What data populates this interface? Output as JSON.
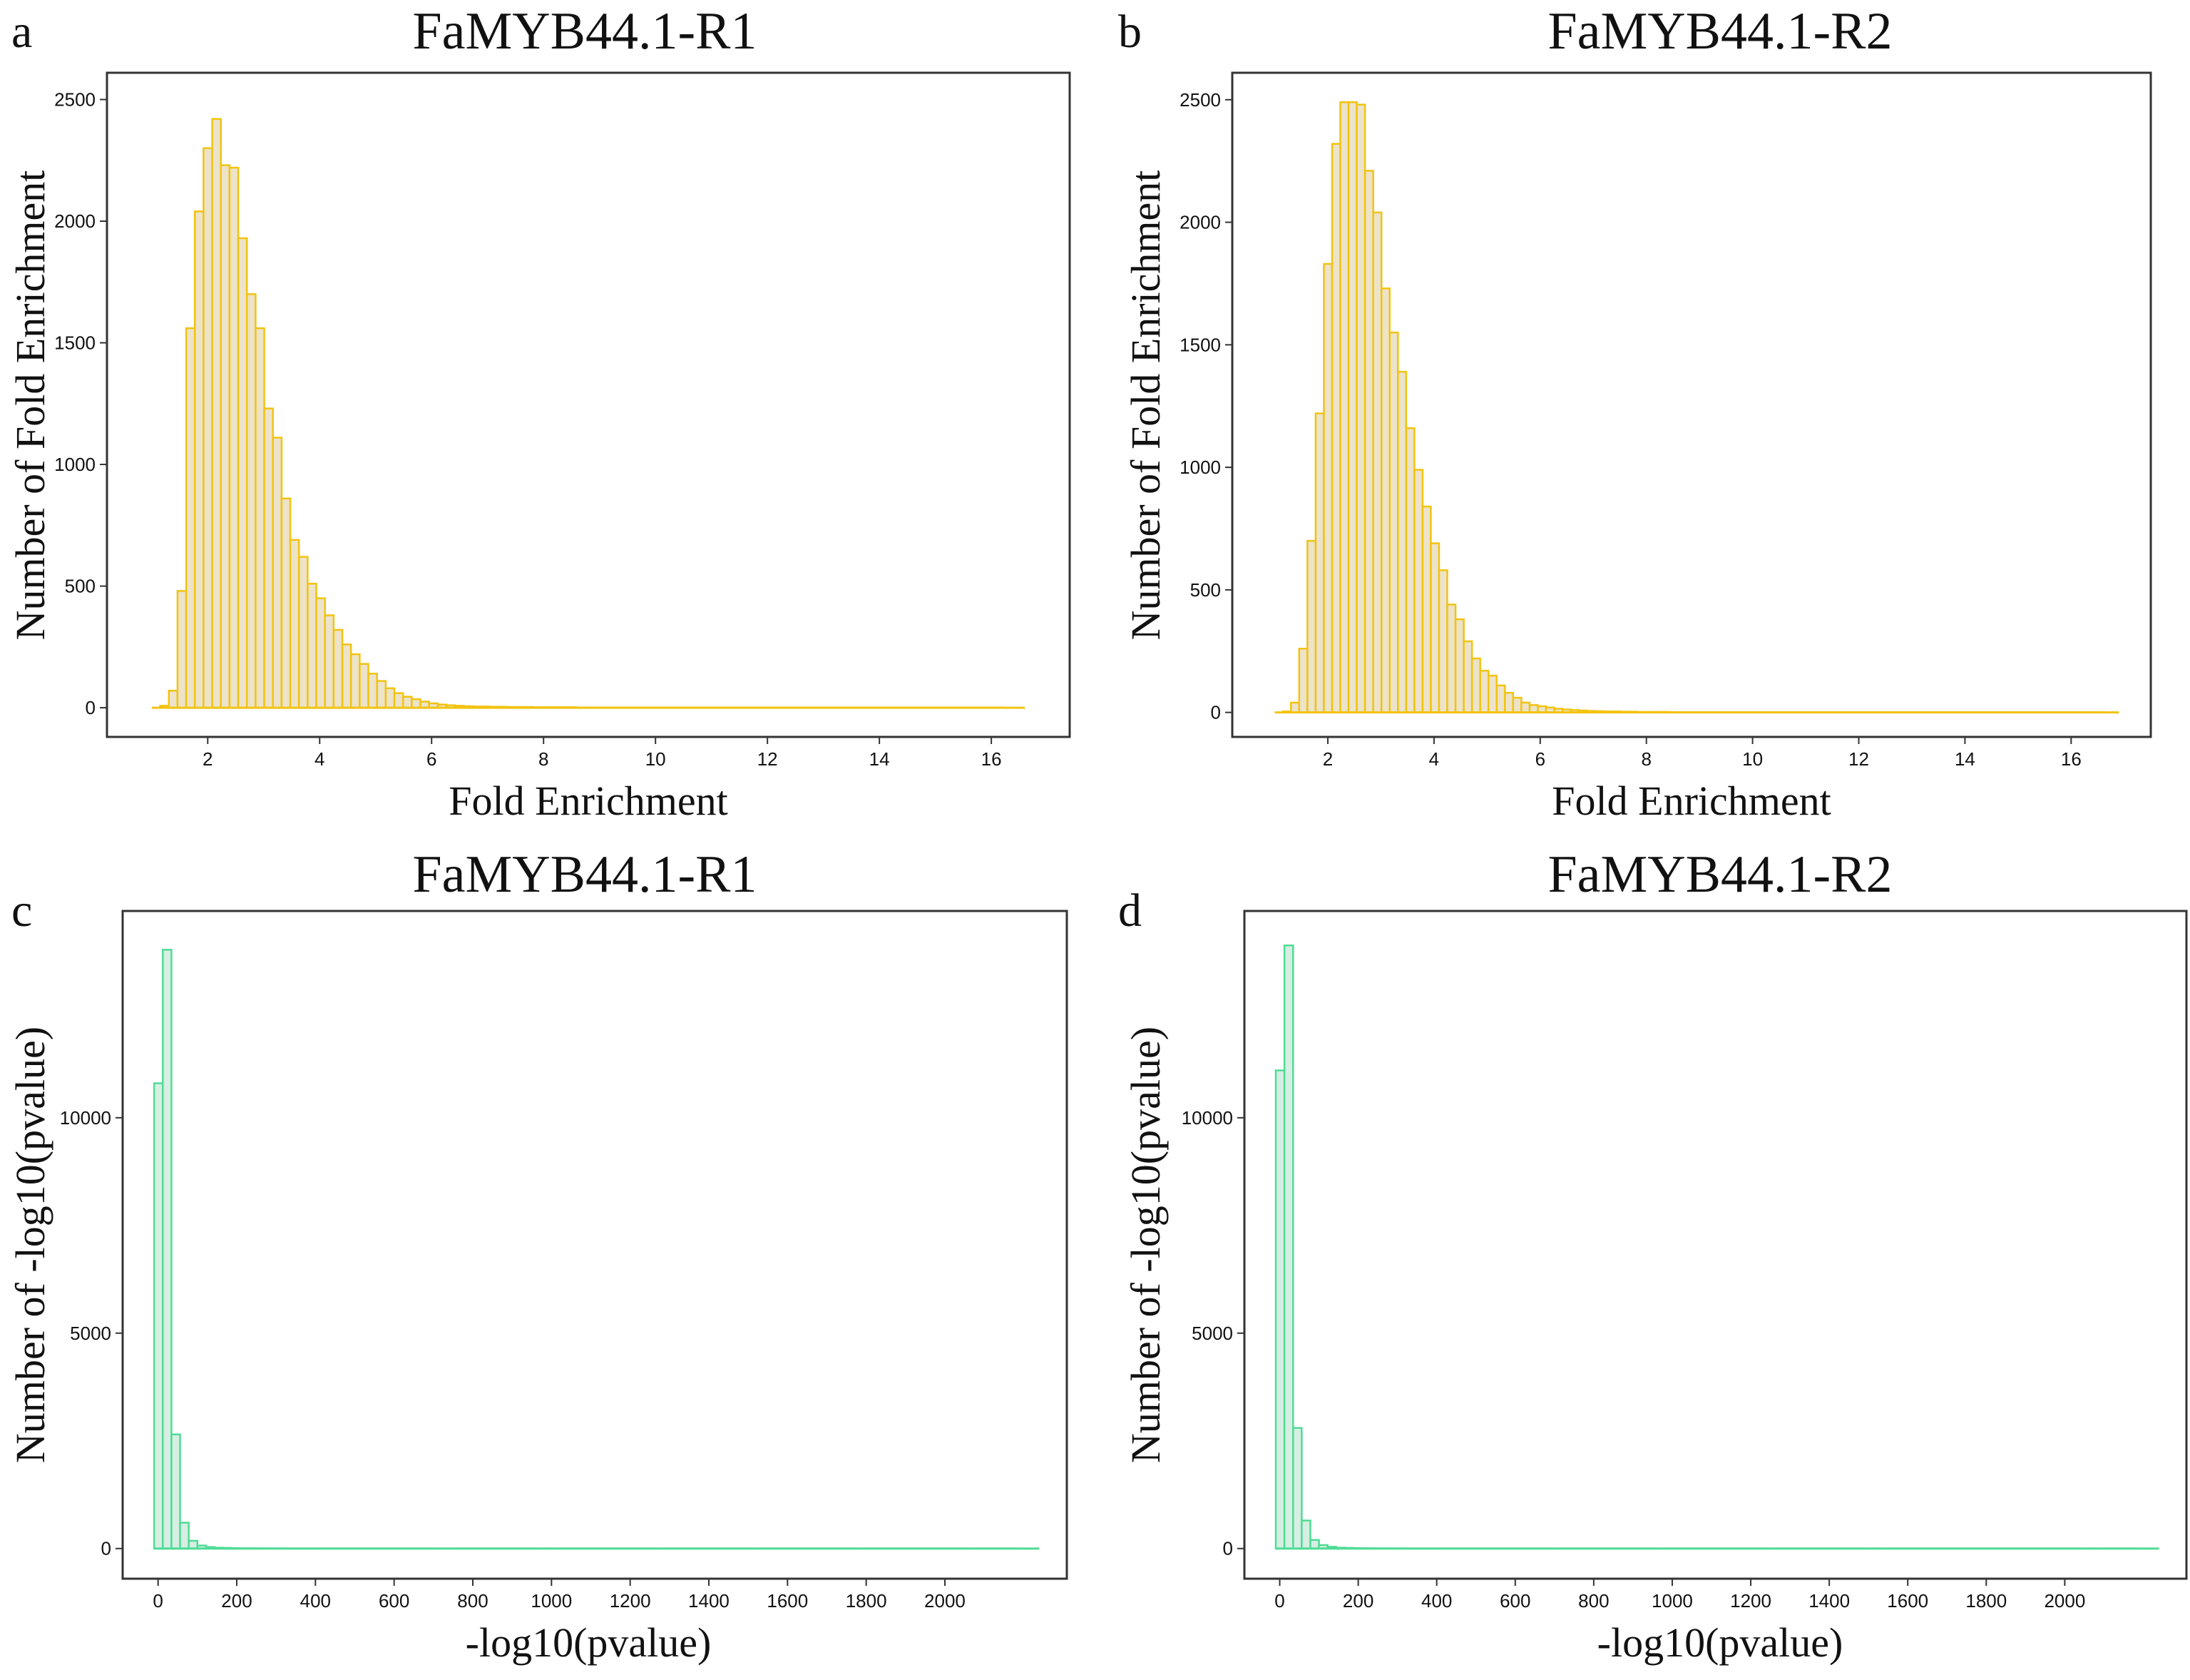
{
  "chart_data": [
    {
      "panel": "a",
      "type": "bar",
      "title": "FaMYB44.1-R1",
      "xlabel": "Fold Enrichment",
      "ylabel": "Number of Fold Enrichment",
      "xlim": [
        0.2,
        17.4
      ],
      "ylim": [
        -120,
        2610
      ],
      "xticks": [
        2,
        4,
        6,
        8,
        10,
        12,
        14,
        16
      ],
      "yticks": [
        0,
        500,
        1000,
        1500,
        2000,
        2500
      ],
      "bin_start": 1.15,
      "bin_width": 0.155,
      "values": [
        8,
        70,
        480,
        1560,
        2040,
        2300,
        2420,
        2230,
        2220,
        1930,
        1700,
        1560,
        1230,
        1110,
        860,
        690,
        620,
        510,
        450,
        380,
        320,
        260,
        220,
        180,
        140,
        110,
        80,
        60,
        45,
        35,
        25,
        18,
        13,
        10,
        8,
        6,
        5,
        5,
        4,
        4,
        3,
        3,
        3,
        2,
        2,
        2,
        2,
        2,
        1,
        1,
        1,
        1,
        1,
        1,
        1,
        1,
        1,
        1,
        1,
        1,
        1,
        1,
        1,
        1,
        1,
        1,
        1,
        1,
        1,
        1,
        1,
        1,
        1,
        1,
        1,
        1,
        1,
        1,
        1,
        1,
        1,
        1,
        1,
        1,
        1,
        1,
        1,
        1,
        1,
        1,
        1,
        1,
        1,
        1,
        1,
        1,
        1
      ],
      "baseline_range": [
        1.0,
        16.6
      ],
      "color": "#f2c311",
      "fill": "#ece3c9"
    },
    {
      "panel": "b",
      "type": "bar",
      "title": "FaMYB44.1-R2",
      "xlabel": "Fold Enrichment",
      "ylabel": "Number of Fold Enrichment",
      "xlim": [
        0.2,
        17.5
      ],
      "ylim": [
        -100,
        2610
      ],
      "xticks": [
        2,
        4,
        6,
        8,
        10,
        12,
        14,
        16
      ],
      "yticks": [
        0,
        500,
        1000,
        1500,
        2000,
        2500
      ],
      "bin_start": 1.15,
      "bin_width": 0.155,
      "values": [
        4,
        40,
        260,
        700,
        1220,
        1830,
        2320,
        2490,
        2490,
        2480,
        2210,
        2040,
        1730,
        1550,
        1390,
        1160,
        990,
        840,
        690,
        580,
        440,
        380,
        290,
        220,
        170,
        150,
        110,
        80,
        60,
        40,
        30,
        25,
        20,
        15,
        12,
        10,
        8,
        6,
        5,
        4,
        4,
        3,
        3,
        2,
        2,
        2,
        2,
        1,
        1,
        1,
        1,
        1,
        1,
        1,
        1,
        1,
        1,
        1,
        1,
        1,
        1,
        1,
        1,
        1,
        1,
        1,
        1,
        1,
        1,
        1,
        1,
        1,
        1,
        1,
        1,
        1,
        1,
        1,
        1,
        1,
        1,
        1,
        1,
        1,
        1,
        1,
        1,
        1,
        1,
        1,
        1,
        1,
        1,
        1,
        1,
        1,
        1,
        1,
        1,
        1
      ],
      "baseline_range": [
        1.0,
        16.9
      ],
      "color": "#f2c311",
      "fill": "#ece3c9"
    },
    {
      "panel": "c",
      "type": "bar",
      "title": "FaMYB44.1-R1",
      "xlabel": "-log10(pvalue)",
      "ylabel": "Number of -log10(pvalue)",
      "xlim": [
        -90,
        2310
      ],
      "ylim": [
        -700,
        14800
      ],
      "xticks": [
        0,
        200,
        400,
        600,
        800,
        1000,
        1200,
        1400,
        1600,
        1800,
        2000
      ],
      "yticks": [
        0,
        5000,
        10000
      ],
      "bin_start": -10,
      "bin_width": 22,
      "values": [
        10800,
        13900,
        2650,
        600,
        180,
        70,
        35,
        20,
        15,
        10,
        8,
        6,
        5,
        4,
        3,
        3,
        2,
        2,
        2,
        1,
        1,
        1,
        1,
        1,
        1,
        1,
        1,
        1,
        1,
        1,
        1,
        1,
        1,
        1,
        1,
        1,
        1,
        1,
        1,
        1,
        1,
        1,
        1,
        1,
        1,
        1,
        1,
        1,
        1,
        1,
        1,
        1,
        1,
        1,
        1,
        1,
        1,
        1,
        1,
        1,
        1,
        1,
        1,
        1,
        1,
        1,
        1,
        1,
        1,
        1,
        1,
        1,
        1,
        1,
        1,
        1,
        1,
        1,
        1,
        1,
        1,
        1,
        1,
        1,
        1,
        1,
        1,
        1,
        1,
        1,
        1,
        1,
        1,
        1,
        1,
        1,
        1,
        1,
        1,
        1
      ],
      "baseline_range": [
        -10,
        2240
      ],
      "color": "#4fdc95",
      "fill": "#d7eee3"
    },
    {
      "panel": "d",
      "type": "bar",
      "title": "FaMYB44.1-R2",
      "xlabel": "-log10(pvalue)",
      "ylabel": "Number of -log10(pvalue)",
      "xlim": [
        -90,
        2310
      ],
      "ylim": [
        -700,
        14800
      ],
      "xticks": [
        0,
        200,
        400,
        600,
        800,
        1000,
        1200,
        1400,
        1600,
        1800,
        2000
      ],
      "yticks": [
        0,
        5000,
        10000
      ],
      "bin_start": -10,
      "bin_width": 22,
      "values": [
        11100,
        14000,
        2800,
        650,
        200,
        80,
        40,
        20,
        15,
        10,
        8,
        6,
        5,
        4,
        3,
        3,
        2,
        2,
        2,
        1,
        1,
        1,
        1,
        1,
        1,
        1,
        1,
        1,
        1,
        1,
        1,
        1,
        1,
        1,
        1,
        1,
        1,
        1,
        1,
        1,
        1,
        1,
        1,
        1,
        1,
        1,
        1,
        1,
        1,
        1,
        1,
        1,
        1,
        1,
        1,
        1,
        1,
        1,
        1,
        1,
        1,
        1,
        1,
        1,
        1,
        1,
        1,
        1,
        1,
        1,
        1,
        1,
        1,
        1,
        1,
        1,
        1,
        1,
        1,
        1,
        1,
        1,
        1,
        1,
        1,
        1,
        1,
        1,
        1,
        1,
        1,
        1,
        1,
        1,
        1,
        1,
        1,
        1,
        1,
        1
      ],
      "baseline_range": [
        -10,
        2240
      ],
      "color": "#4fdc95",
      "fill": "#d7eee3"
    }
  ]
}
